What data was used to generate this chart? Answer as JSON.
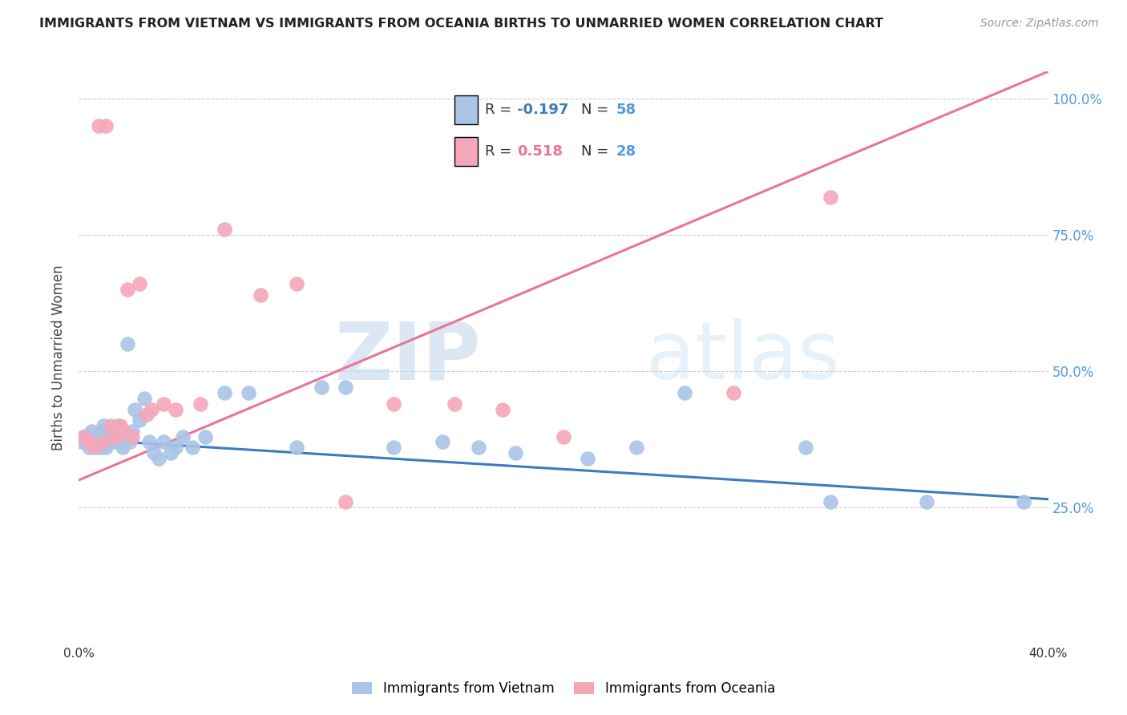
{
  "title": "IMMIGRANTS FROM VIETNAM VS IMMIGRANTS FROM OCEANIA BIRTHS TO UNMARRIED WOMEN CORRELATION CHART",
  "source": "Source: ZipAtlas.com",
  "ylabel": "Births to Unmarried Women",
  "xlim": [
    0.0,
    0.4
  ],
  "ylim": [
    0.0,
    1.05
  ],
  "color_vietnam": "#aac4e8",
  "color_oceania": "#f4a7b9",
  "color_vietnam_line": "#3a7dbf",
  "color_oceania_line": "#e8749a",
  "color_right_axis": "#5599dd",
  "watermark_zip": "ZIP",
  "watermark_atlas": "atlas",
  "vietnam_line_x0": 0.0,
  "vietnam_line_x1": 0.4,
  "vietnam_line_y0": 0.375,
  "vietnam_line_y1": 0.265,
  "oceania_line_x0": 0.0,
  "oceania_line_x1": 0.4,
  "oceania_line_y0": 0.3,
  "oceania_line_y1": 1.05,
  "vietnam_x": [
    0.001,
    0.002,
    0.003,
    0.004,
    0.004,
    0.005,
    0.005,
    0.006,
    0.007,
    0.007,
    0.008,
    0.008,
    0.009,
    0.009,
    0.01,
    0.01,
    0.011,
    0.011,
    0.012,
    0.012,
    0.013,
    0.014,
    0.015,
    0.016,
    0.017,
    0.018,
    0.019,
    0.02,
    0.021,
    0.022,
    0.023,
    0.025,
    0.027,
    0.029,
    0.031,
    0.033,
    0.035,
    0.038,
    0.04,
    0.043,
    0.047,
    0.052,
    0.06,
    0.07,
    0.09,
    0.1,
    0.11,
    0.13,
    0.15,
    0.165,
    0.18,
    0.21,
    0.23,
    0.25,
    0.3,
    0.31,
    0.35,
    0.39
  ],
  "vietnam_y": [
    0.37,
    0.38,
    0.37,
    0.36,
    0.38,
    0.37,
    0.39,
    0.38,
    0.37,
    0.36,
    0.38,
    0.37,
    0.39,
    0.36,
    0.38,
    0.4,
    0.37,
    0.36,
    0.38,
    0.37,
    0.39,
    0.37,
    0.38,
    0.4,
    0.37,
    0.36,
    0.38,
    0.55,
    0.37,
    0.39,
    0.43,
    0.41,
    0.45,
    0.37,
    0.35,
    0.34,
    0.37,
    0.35,
    0.36,
    0.38,
    0.36,
    0.38,
    0.46,
    0.46,
    0.36,
    0.47,
    0.47,
    0.36,
    0.37,
    0.36,
    0.35,
    0.34,
    0.36,
    0.46,
    0.36,
    0.26,
    0.26,
    0.26
  ],
  "oceania_x": [
    0.002,
    0.004,
    0.006,
    0.008,
    0.01,
    0.011,
    0.013,
    0.015,
    0.017,
    0.018,
    0.02,
    0.022,
    0.025,
    0.028,
    0.03,
    0.035,
    0.04,
    0.05,
    0.06,
    0.075,
    0.09,
    0.11,
    0.13,
    0.155,
    0.175,
    0.2,
    0.27,
    0.31
  ],
  "oceania_y": [
    0.38,
    0.37,
    0.36,
    0.95,
    0.37,
    0.95,
    0.4,
    0.38,
    0.4,
    0.39,
    0.65,
    0.38,
    0.66,
    0.42,
    0.43,
    0.44,
    0.43,
    0.44,
    0.76,
    0.64,
    0.66,
    0.26,
    0.44,
    0.44,
    0.43,
    0.38,
    0.46,
    0.82
  ],
  "r1": "-0.197",
  "n1": "58",
  "r2": "0.518",
  "n2": "28"
}
